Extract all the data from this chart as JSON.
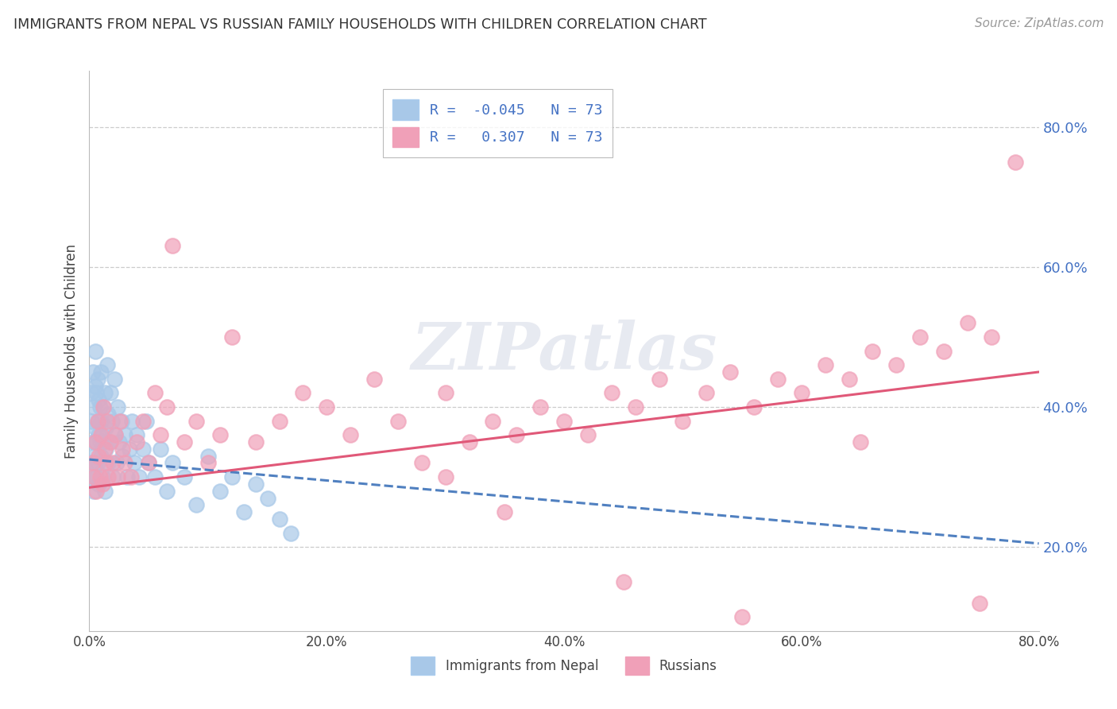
{
  "title": "IMMIGRANTS FROM NEPAL VS RUSSIAN FAMILY HOUSEHOLDS WITH CHILDREN CORRELATION CHART",
  "source": "Source: ZipAtlas.com",
  "xlabel_bottom": "Immigrants from Nepal",
  "xlabel_bottom2": "Russians",
  "ylabel": "Family Households with Children",
  "xlim": [
    0.0,
    0.8
  ],
  "ylim": [
    0.08,
    0.88
  ],
  "xticks": [
    0.0,
    0.2,
    0.4,
    0.6,
    0.8
  ],
  "yticks_right": [
    0.2,
    0.4,
    0.6,
    0.8
  ],
  "R_nepal": -0.045,
  "R_russian": 0.307,
  "N_nepal": 73,
  "N_russian": 73,
  "nepal_color": "#a8c8e8",
  "russian_color": "#f0a0b8",
  "nepal_line_color": "#5080c0",
  "russian_line_color": "#e05878",
  "watermark": "ZIPatlas",
  "watermark_color": "#d8dce8",
  "nepal_x": [
    0.001,
    0.002,
    0.002,
    0.003,
    0.003,
    0.003,
    0.004,
    0.004,
    0.004,
    0.005,
    0.005,
    0.005,
    0.005,
    0.006,
    0.006,
    0.006,
    0.007,
    0.007,
    0.007,
    0.008,
    0.008,
    0.008,
    0.009,
    0.009,
    0.01,
    0.01,
    0.01,
    0.011,
    0.011,
    0.012,
    0.012,
    0.013,
    0.013,
    0.014,
    0.014,
    0.015,
    0.016,
    0.016,
    0.017,
    0.018,
    0.019,
    0.02,
    0.021,
    0.022,
    0.023,
    0.024,
    0.025,
    0.027,
    0.028,
    0.03,
    0.032,
    0.034,
    0.036,
    0.038,
    0.04,
    0.042,
    0.045,
    0.048,
    0.05,
    0.055,
    0.06,
    0.065,
    0.07,
    0.08,
    0.09,
    0.1,
    0.11,
    0.12,
    0.13,
    0.14,
    0.15,
    0.16,
    0.17
  ],
  "nepal_y": [
    0.32,
    0.38,
    0.42,
    0.35,
    0.3,
    0.45,
    0.33,
    0.4,
    0.28,
    0.37,
    0.43,
    0.32,
    0.48,
    0.35,
    0.42,
    0.3,
    0.38,
    0.44,
    0.32,
    0.36,
    0.41,
    0.29,
    0.4,
    0.35,
    0.38,
    0.33,
    0.45,
    0.36,
    0.3,
    0.4,
    0.35,
    0.42,
    0.28,
    0.37,
    0.34,
    0.46,
    0.32,
    0.39,
    0.35,
    0.42,
    0.38,
    0.3,
    0.44,
    0.36,
    0.32,
    0.4,
    0.35,
    0.38,
    0.33,
    0.36,
    0.3,
    0.34,
    0.38,
    0.32,
    0.36,
    0.3,
    0.34,
    0.38,
    0.32,
    0.3,
    0.34,
    0.28,
    0.32,
    0.3,
    0.26,
    0.33,
    0.28,
    0.3,
    0.25,
    0.29,
    0.27,
    0.24,
    0.22
  ],
  "russian_x": [
    0.003,
    0.004,
    0.005,
    0.006,
    0.007,
    0.008,
    0.009,
    0.01,
    0.011,
    0.012,
    0.013,
    0.014,
    0.015,
    0.016,
    0.018,
    0.02,
    0.022,
    0.024,
    0.026,
    0.028,
    0.03,
    0.035,
    0.04,
    0.045,
    0.05,
    0.055,
    0.06,
    0.065,
    0.07,
    0.08,
    0.09,
    0.1,
    0.11,
    0.12,
    0.14,
    0.16,
    0.18,
    0.2,
    0.22,
    0.24,
    0.26,
    0.28,
    0.3,
    0.32,
    0.34,
    0.36,
    0.38,
    0.4,
    0.42,
    0.44,
    0.46,
    0.48,
    0.5,
    0.52,
    0.54,
    0.56,
    0.58,
    0.6,
    0.62,
    0.64,
    0.66,
    0.68,
    0.7,
    0.72,
    0.74,
    0.76,
    0.78,
    0.3,
    0.35,
    0.45,
    0.55,
    0.65,
    0.75
  ],
  "russian_y": [
    0.32,
    0.3,
    0.35,
    0.28,
    0.38,
    0.33,
    0.3,
    0.36,
    0.29,
    0.4,
    0.34,
    0.32,
    0.38,
    0.3,
    0.35,
    0.32,
    0.36,
    0.3,
    0.38,
    0.34,
    0.32,
    0.3,
    0.35,
    0.38,
    0.32,
    0.42,
    0.36,
    0.4,
    0.63,
    0.35,
    0.38,
    0.32,
    0.36,
    0.5,
    0.35,
    0.38,
    0.42,
    0.4,
    0.36,
    0.44,
    0.38,
    0.32,
    0.42,
    0.35,
    0.38,
    0.36,
    0.4,
    0.38,
    0.36,
    0.42,
    0.4,
    0.44,
    0.38,
    0.42,
    0.45,
    0.4,
    0.44,
    0.42,
    0.46,
    0.44,
    0.48,
    0.46,
    0.5,
    0.48,
    0.52,
    0.5,
    0.75,
    0.3,
    0.25,
    0.15,
    0.1,
    0.35,
    0.12
  ],
  "nepal_line_x0": 0.0,
  "nepal_line_x1": 0.8,
  "nepal_line_y0": 0.325,
  "nepal_line_y1": 0.205,
  "russian_line_x0": 0.0,
  "russian_line_x1": 0.8,
  "russian_line_y0": 0.285,
  "russian_line_y1": 0.45
}
